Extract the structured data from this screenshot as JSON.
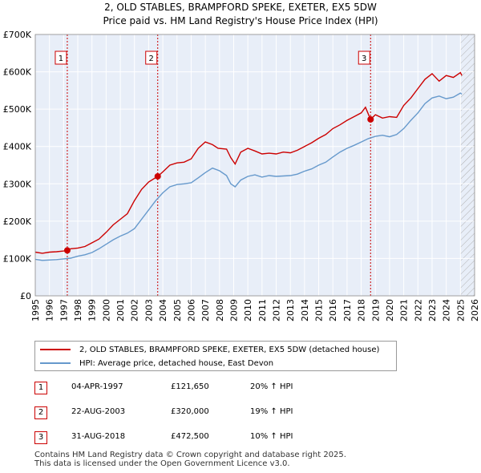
{
  "title_line1": "2, OLD STABLES, BRAMPFORD SPEKE, EXETER, EX5 5DW",
  "title_line2": "Price paid vs. HM Land Registry's House Price Index (HPI)",
  "chart_data": {
    "type": "line",
    "title": "2, OLD STABLES, BRAMPFORD SPEKE, EXETER, EX5 5DW",
    "subtitle": "Price paid vs. HM Land Registry's House Price Index (HPI)",
    "xlabel": "",
    "ylabel": "",
    "xlim": [
      1995,
      2026
    ],
    "ylim": [
      0,
      700000
    ],
    "x_ticks": [
      1995,
      1996,
      1997,
      1998,
      1999,
      2000,
      2001,
      2002,
      2003,
      2004,
      2005,
      2006,
      2007,
      2008,
      2009,
      2010,
      2011,
      2012,
      2013,
      2014,
      2015,
      2016,
      2017,
      2018,
      2019,
      2020,
      2021,
      2022,
      2023,
      2024,
      2025,
      2026
    ],
    "y_ticks": [
      {
        "value": 0,
        "label": "£0"
      },
      {
        "value": 100000,
        "label": "£100K"
      },
      {
        "value": 200000,
        "label": "£200K"
      },
      {
        "value": 300000,
        "label": "£300K"
      },
      {
        "value": 400000,
        "label": "£400K"
      },
      {
        "value": 500000,
        "label": "£500K"
      },
      {
        "value": 600000,
        "label": "£600K"
      },
      {
        "value": 700000,
        "label": "£700K"
      }
    ],
    "grid": true,
    "hatch_from": 2025.0,
    "colors": {
      "price_line": "#cc0000",
      "hpi_line": "#6699cc",
      "grid": "#dddddd",
      "background": "#e8eef8",
      "marker": "#cc0000"
    },
    "series": [
      {
        "name": "2, OLD STABLES, BRAMPFORD SPEKE, EXETER, EX5 5DW (detached house)",
        "color": "#cc0000",
        "x": [
          1995.0,
          1995.5,
          1996.0,
          1996.5,
          1997.0,
          1997.26,
          1997.5,
          1998.0,
          1998.5,
          1999.0,
          1999.5,
          2000.0,
          2000.5,
          2001.0,
          2001.5,
          2002.0,
          2002.5,
          2003.0,
          2003.64,
          2004.0,
          2004.5,
          2005.0,
          2005.5,
          2006.0,
          2006.5,
          2007.0,
          2007.5,
          2007.9,
          2008.5,
          2008.8,
          2009.1,
          2009.5,
          2010.0,
          2010.5,
          2011.0,
          2011.5,
          2012.0,
          2012.5,
          2013.0,
          2013.5,
          2014.0,
          2014.5,
          2015.0,
          2015.5,
          2016.0,
          2016.5,
          2017.0,
          2017.5,
          2018.0,
          2018.3,
          2018.66,
          2019.0,
          2019.5,
          2020.0,
          2020.5,
          2021.0,
          2021.5,
          2022.0,
          2022.5,
          2023.0,
          2023.5,
          2024.0,
          2024.5,
          2025.0,
          2025.1
        ],
        "values": [
          117000,
          114000,
          117000,
          118000,
          120000,
          121650,
          126000,
          128000,
          132000,
          142000,
          152000,
          170000,
          190000,
          205000,
          220000,
          255000,
          285000,
          305000,
          320000,
          332000,
          350000,
          356000,
          358000,
          367000,
          395000,
          412000,
          405000,
          395000,
          393000,
          370000,
          353000,
          385000,
          395000,
          388000,
          380000,
          382000,
          380000,
          385000,
          383000,
          390000,
          400000,
          410000,
          422000,
          432000,
          448000,
          458000,
          470000,
          480000,
          490000,
          505000,
          472500,
          485000,
          476000,
          480000,
          478000,
          510000,
          530000,
          555000,
          580000,
          595000,
          575000,
          590000,
          585000,
          598000,
          590000
        ]
      },
      {
        "name": "HPI: Average price, detached house, East Devon",
        "color": "#6699cc",
        "x": [
          1995.0,
          1995.5,
          1996.0,
          1996.5,
          1997.0,
          1997.5,
          1998.0,
          1998.5,
          1999.0,
          1999.5,
          2000.0,
          2000.5,
          2001.0,
          2001.5,
          2002.0,
          2002.5,
          2003.0,
          2003.5,
          2004.0,
          2004.5,
          2005.0,
          2005.5,
          2006.0,
          2006.5,
          2007.0,
          2007.5,
          2008.0,
          2008.5,
          2008.8,
          2009.1,
          2009.5,
          2010.0,
          2010.5,
          2011.0,
          2011.5,
          2012.0,
          2012.5,
          2013.0,
          2013.5,
          2014.0,
          2014.5,
          2015.0,
          2015.5,
          2016.0,
          2016.5,
          2017.0,
          2017.5,
          2018.0,
          2018.5,
          2019.0,
          2019.5,
          2020.0,
          2020.5,
          2021.0,
          2021.5,
          2022.0,
          2022.5,
          2023.0,
          2023.5,
          2024.0,
          2024.5,
          2025.0,
          2025.1
        ],
        "values": [
          98000,
          95000,
          96000,
          97000,
          99000,
          101000,
          106000,
          110000,
          116000,
          126000,
          138000,
          150000,
          160000,
          168000,
          180000,
          205000,
          230000,
          255000,
          276000,
          292000,
          298000,
          300000,
          303000,
          316000,
          330000,
          342000,
          335000,
          322000,
          300000,
          292000,
          310000,
          320000,
          324000,
          318000,
          322000,
          320000,
          321000,
          322000,
          326000,
          334000,
          340000,
          350000,
          358000,
          372000,
          385000,
          395000,
          403000,
          412000,
          421000,
          427000,
          430000,
          426000,
          432000,
          448000,
          470000,
          490000,
          515000,
          530000,
          535000,
          528000,
          532000,
          543000,
          540000
        ]
      }
    ],
    "sales": [
      {
        "num": "1",
        "x": 1997.26,
        "value": 121650
      },
      {
        "num": "2",
        "x": 2003.64,
        "value": 320000
      },
      {
        "num": "3",
        "x": 2018.66,
        "value": 472500
      }
    ]
  },
  "legend": {
    "price_label": "2, OLD STABLES, BRAMPFORD SPEKE, EXETER, EX5 5DW (detached house)",
    "hpi_label": "HPI: Average price, detached house, East Devon"
  },
  "sales_table": [
    {
      "num": "1",
      "date": "04-APR-1997",
      "price": "£121,650",
      "hpi": "20% ↑ HPI"
    },
    {
      "num": "2",
      "date": "22-AUG-2003",
      "price": "£320,000",
      "hpi": "19% ↑ HPI"
    },
    {
      "num": "3",
      "date": "31-AUG-2018",
      "price": "£472,500",
      "hpi": "10% ↑ HPI"
    }
  ],
  "footer": {
    "line1": "Contains HM Land Registry data © Crown copyright and database right 2025.",
    "line2": "This data is licensed under the Open Government Licence v3.0."
  }
}
